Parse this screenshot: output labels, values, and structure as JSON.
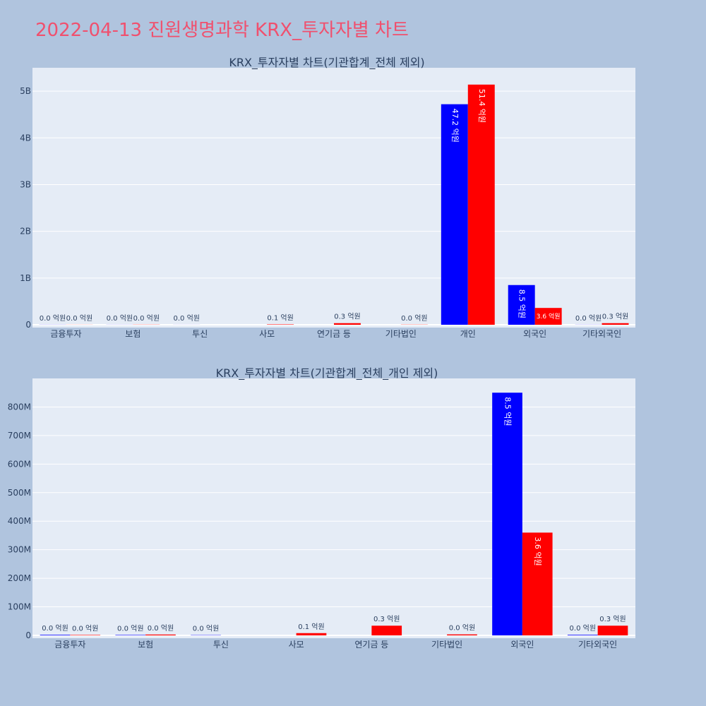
{
  "title": "2022-04-13 진원생명과학 KRX_투자자별 차트",
  "colors": {
    "background": "#b0c4de",
    "plot_bg": "#e5ecf6",
    "title": "#f0506e",
    "buy": "#0000ff",
    "sell": "#ff0000"
  },
  "chart_data": [
    {
      "type": "bar",
      "title": "KRX_투자자별 차트(기관합계_전체 제외)",
      "categories": [
        "금융투자",
        "보험",
        "투신",
        "사모",
        "연기금 등",
        "기타법인",
        "개인",
        "외국인",
        "기타외국인"
      ],
      "series": [
        {
          "color": "#0000ff",
          "values": [
            2000000,
            1500000,
            1000000,
            0,
            0,
            0,
            4720000000,
            850000000,
            2000000
          ],
          "labels": [
            "0.0 억원",
            "0.0 억원",
            "0.0 억원",
            "",
            "",
            "",
            "47.2 억원",
            "8.5 억원",
            "0.0 억원"
          ]
        },
        {
          "color": "#ff0000",
          "values": [
            1500000,
            3000000,
            0,
            8000000,
            34000000,
            3500000,
            5140000000,
            360000000,
            34000000
          ],
          "labels": [
            "0.0 억원",
            "0.0 억원",
            "",
            "0.1 억원",
            "0.3 억원",
            "0.0 억원",
            "51.4 억원",
            "3.6 억원",
            "0.3 억원"
          ]
        }
      ],
      "ylim": [
        0,
        5500000000
      ],
      "yticks": [
        0,
        1000000000,
        2000000000,
        3000000000,
        4000000000,
        5000000000
      ],
      "ytick_labels": [
        "0",
        "1B",
        "2B",
        "3B",
        "4B",
        "5B"
      ],
      "grid": true
    },
    {
      "type": "bar",
      "title": "KRX_투자자별 차트(기관합계_전체_개인 제외)",
      "categories": [
        "금융투자",
        "보험",
        "투신",
        "사모",
        "연기금 등",
        "기타법인",
        "외국인",
        "기타외국인"
      ],
      "series": [
        {
          "color": "#0000ff",
          "values": [
            2000000,
            1500000,
            1000000,
            0,
            0,
            0,
            850000000,
            2000000
          ],
          "labels": [
            "0.0 억원",
            "0.0 억원",
            "0.0 억원",
            "",
            "",
            "",
            "8.5 억원",
            "0.0 억원"
          ]
        },
        {
          "color": "#ff0000",
          "values": [
            1500000,
            3000000,
            0,
            8000000,
            34000000,
            3500000,
            360000000,
            34000000
          ],
          "labels": [
            "0.0 억원",
            "0.0 억원",
            "",
            "0.1 억원",
            "0.3 억원",
            "0.0 억원",
            "3.6 억원",
            "0.3 억원"
          ]
        }
      ],
      "ylim": [
        0,
        900000000
      ],
      "yticks": [
        0,
        100000000,
        200000000,
        300000000,
        400000000,
        500000000,
        600000000,
        700000000,
        800000000
      ],
      "ytick_labels": [
        "0",
        "100M",
        "200M",
        "300M",
        "400M",
        "500M",
        "600M",
        "700M",
        "800M"
      ],
      "grid": true
    }
  ]
}
